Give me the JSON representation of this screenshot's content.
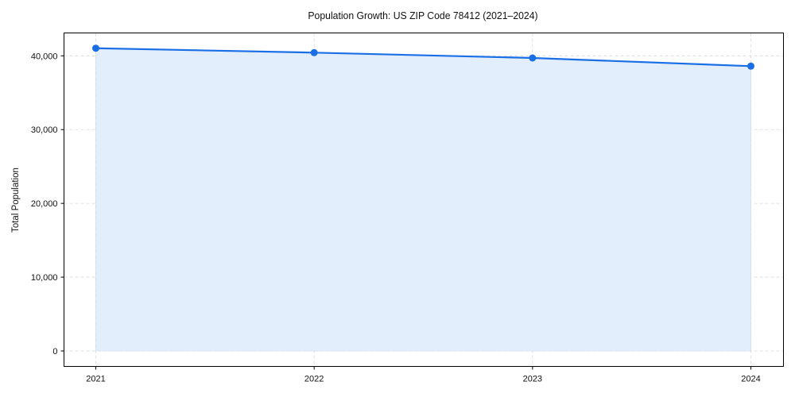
{
  "chart_data": {
    "type": "area",
    "title": "Population Growth: US ZIP Code 78412 (2021–2024)",
    "xlabel": "",
    "ylabel": "Total Population",
    "categories": [
      "2021",
      "2022",
      "2023",
      "2024"
    ],
    "series": [
      {
        "name": "Total Population",
        "values": [
          41030,
          40430,
          39710,
          38600
        ]
      }
    ],
    "ylim": [
      -2100,
      43200
    ],
    "yticks": [
      0,
      10000,
      20000,
      30000,
      40000
    ],
    "ytick_labels": [
      "0",
      "10,000",
      "20,000",
      "30,000",
      "40,000"
    ],
    "xticks": [
      "2021",
      "2022",
      "2023",
      "2024"
    ],
    "grid": true,
    "legend": null,
    "colors": {
      "line": "#1a6fe6",
      "fill": "#e3eefc",
      "grid": "#d9d9d9"
    }
  }
}
